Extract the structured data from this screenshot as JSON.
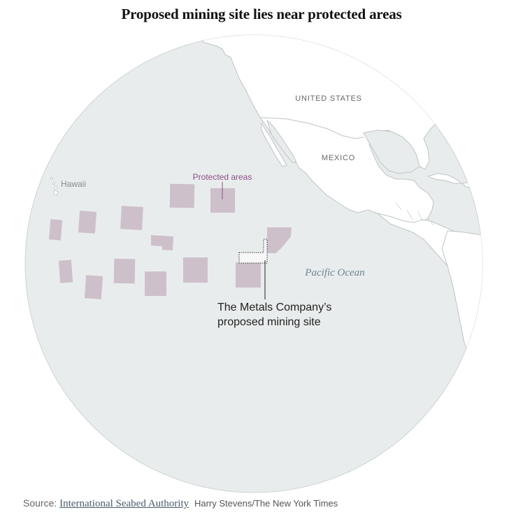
{
  "title": "Proposed mining site lies near protected areas",
  "labels": {
    "united_states": "UNITED STATES",
    "mexico": "MEXICO",
    "hawaii": "Hawaii",
    "protected_areas": "Protected areas",
    "pacific_ocean": "Pacific Ocean",
    "mining_site_line1": "The Metals Company’s",
    "mining_site_line2": "proposed mining site"
  },
  "source": {
    "prefix": "Source:",
    "link_text": "International Seabed Authority",
    "credit": "Harry Stevens/The New York Times"
  },
  "colors": {
    "ocean": "#e9ecec",
    "land": "#ffffff",
    "protected_area": "#cdc0cb",
    "border": "#bfc4c4"
  }
}
